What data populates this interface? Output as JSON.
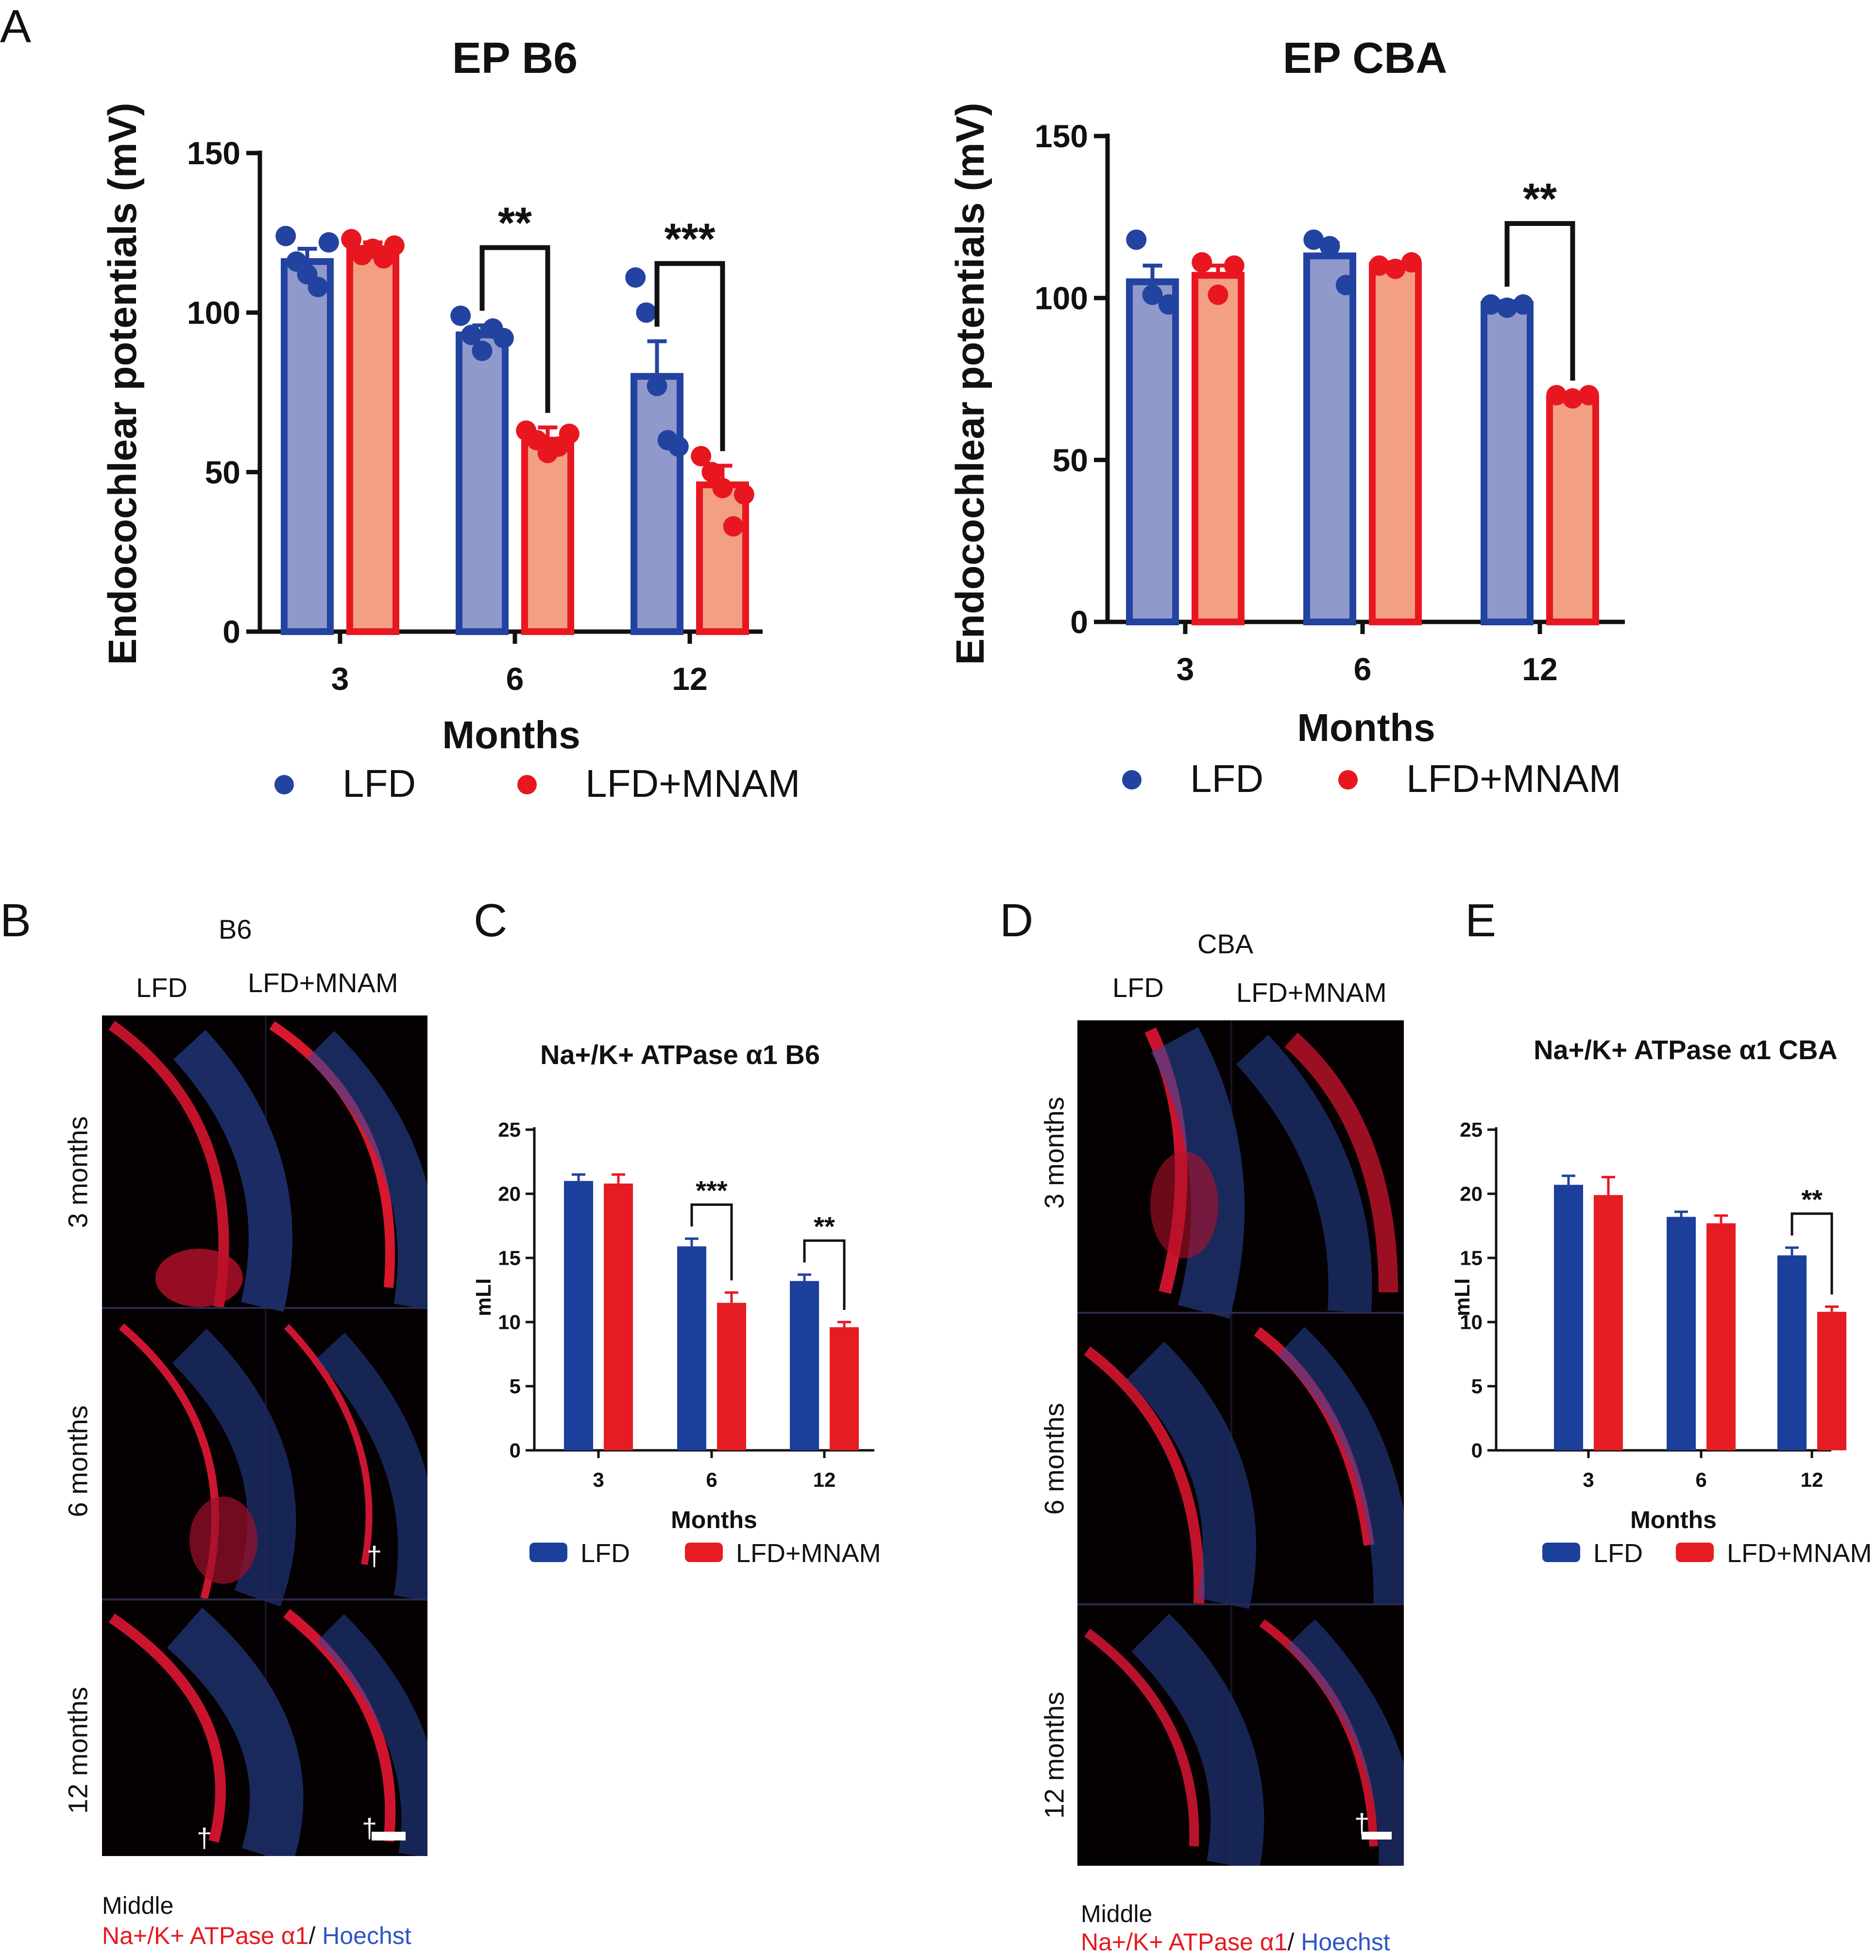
{
  "colors": {
    "lfd": "#2343a0",
    "lfd_fill": "#8f99cc",
    "mnam": "#e8171f",
    "mnam_fill": "#f39f84",
    "bar_lfd": "#1c3f9c",
    "bar_mnam": "#e61c23",
    "axis": "#111111"
  },
  "panel_letters": {
    "a": "A",
    "b": "B",
    "c": "C",
    "d": "D",
    "e": "E"
  },
  "chart_data": [
    {
      "id": "ep_b6",
      "type": "bar",
      "title": "EP B6",
      "xlabel": "Months",
      "ylabel": "Endocochlear potentials  (mV)",
      "categories": [
        "3",
        "6",
        "12"
      ],
      "ylim": [
        0,
        150
      ],
      "yticks": [
        "0",
        "50",
        "100",
        "150"
      ],
      "series": [
        {
          "name": "LFD",
          "values": [
            116,
            93,
            80
          ],
          "errors": [
            4,
            3,
            11
          ],
          "points": [
            [
              124,
              116,
              112,
              108,
              122
            ],
            [
              99,
              93,
              88,
              95,
              92
            ],
            [
              111,
              100,
              77,
              60,
              58
            ]
          ]
        },
        {
          "name": "LFD+MNAM",
          "values": [
            120,
            60,
            46
          ],
          "errors": [
            2,
            4,
            6
          ],
          "points": [
            [
              123,
              118,
              120,
              117,
              121
            ],
            [
              63,
              60,
              56,
              58,
              62
            ],
            [
              55,
              50,
              45,
              33,
              43
            ]
          ]
        }
      ],
      "significance": [
        {
          "category": "6",
          "label": "**"
        },
        {
          "category": "12",
          "label": "***"
        }
      ],
      "legend": [
        "LFD",
        "LFD+MNAM"
      ]
    },
    {
      "id": "ep_cba",
      "type": "bar",
      "title": "EP CBA",
      "xlabel": "Months",
      "ylabel": "Endocochlear potentials  (mV)",
      "categories": [
        "3",
        "6",
        "12"
      ],
      "ylim": [
        0,
        150
      ],
      "yticks": [
        "0",
        "50",
        "100",
        "150"
      ],
      "series": [
        {
          "name": "LFD",
          "values": [
            105,
            113,
            98
          ],
          "errors": [
            5,
            4,
            1
          ],
          "points": [
            [
              118,
              101,
              98
            ],
            [
              118,
              116,
              104
            ],
            [
              98,
              97,
              98
            ]
          ]
        },
        {
          "name": "LFD+MNAM",
          "values": [
            107,
            110,
            69
          ],
          "errors": [
            3,
            1,
            1
          ],
          "points": [
            [
              111,
              101,
              110
            ],
            [
              110,
              109,
              111
            ],
            [
              70,
              69,
              70
            ]
          ]
        }
      ],
      "significance": [
        {
          "category": "12",
          "label": "**"
        }
      ],
      "legend": [
        "LFD",
        "LFD+MNAM"
      ]
    },
    {
      "id": "atpase_b6",
      "type": "bar",
      "title": "Na+/K+ ATPase α1 B6",
      "xlabel": "Months",
      "ylabel": "mLI",
      "categories": [
        "3",
        "6",
        "12"
      ],
      "ylim": [
        0,
        25
      ],
      "yticks": [
        "0",
        "5",
        "10",
        "15",
        "20",
        "25"
      ],
      "series": [
        {
          "name": "LFD",
          "values": [
            21.0,
            15.9,
            13.2
          ],
          "errors": [
            0.5,
            0.6,
            0.5
          ]
        },
        {
          "name": "LFD+MNAM",
          "values": [
            20.8,
            11.5,
            9.6
          ],
          "errors": [
            0.7,
            0.8,
            0.4
          ]
        }
      ],
      "significance": [
        {
          "category": "6",
          "label": "***"
        },
        {
          "category": "12",
          "label": "**"
        }
      ],
      "legend": [
        "LFD",
        "LFD+MNAM"
      ]
    },
    {
      "id": "atpase_cba",
      "type": "bar",
      "title": "Na+/K+ ATPase α1 CBA",
      "xlabel": "Months",
      "ylabel": "mLI",
      "categories": [
        "3",
        "6",
        "12"
      ],
      "ylim": [
        0,
        25
      ],
      "yticks": [
        "0",
        "5",
        "10",
        "15",
        "20",
        "25"
      ],
      "series": [
        {
          "name": "LFD",
          "values": [
            20.7,
            18.2,
            15.2
          ],
          "errors": [
            0.7,
            0.4,
            0.6
          ]
        },
        {
          "name": "LFD+MNAM",
          "values": [
            19.9,
            17.7,
            10.8
          ],
          "errors": [
            1.4,
            0.6,
            0.4
          ]
        }
      ],
      "significance": [
        {
          "category": "12",
          "label": "**"
        }
      ],
      "legend": [
        "LFD",
        "LFD+MNAM"
      ]
    }
  ],
  "micrographs": {
    "b6": {
      "strain": "B6",
      "col_left": "LFD",
      "col_right": "LFD+MNAM",
      "rows": [
        "3 months",
        "6 months",
        "12 months"
      ],
      "region": "Middle",
      "stain_red": "Na+/K+ ATPase α1",
      "stain_sep": "/ ",
      "stain_blue": "Hoechst",
      "dagger": "†"
    },
    "cba": {
      "strain": "CBA",
      "col_left": "LFD",
      "col_right": "LFD+MNAM",
      "rows": [
        "3 months",
        "6 months",
        "12 months"
      ],
      "region": "Middle",
      "stain_red": "Na+/K+ ATPase α1",
      "stain_sep": "/ ",
      "stain_blue": "Hoechst",
      "dagger": "†"
    }
  }
}
